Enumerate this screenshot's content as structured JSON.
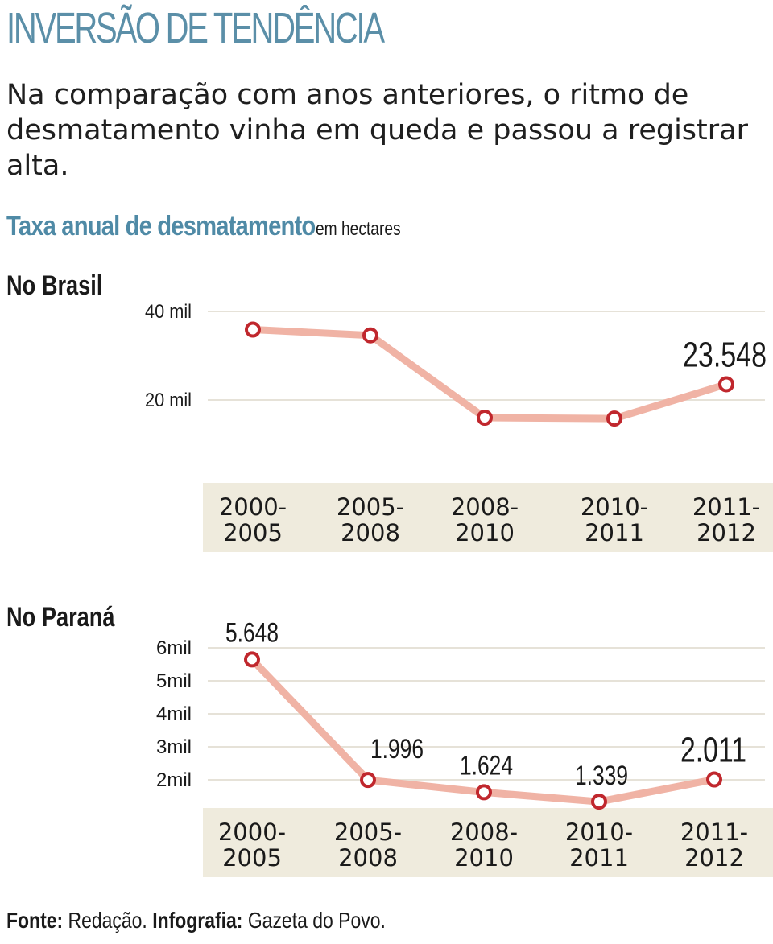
{
  "headline": "INVERSÃO DE TENDÊNCIA",
  "subtitle": "Na comparação com anos anteriores, o ritmo de desmatamento vinha em queda e passou a registrar alta.",
  "chart_title": "Taxa anual de desmatamento",
  "chart_unit": "em hectares",
  "source": {
    "fonte_label": "Fonte:",
    "fonte_value": "Redação.",
    "infografia_label": "Infografia:",
    "infografia_value": "Gazeta do Povo."
  },
  "colors": {
    "line": "#f0b3a5",
    "marker": "#c0272d",
    "grid": "#e6e2d8",
    "category_band": "#efebdd",
    "headline": "#5b8fa8",
    "chart_title": "#4f8aa6"
  },
  "chart_data": [
    {
      "type": "line",
      "panel_label": "No Brasil",
      "categories": [
        "2000-2005",
        "2005-2008",
        "2008-2010",
        "2010-2011",
        "2011-2012"
      ],
      "values": [
        35900,
        34600,
        16000,
        15800,
        23548
      ],
      "data_labels": [
        "",
        "",
        "",
        "",
        "23.548"
      ],
      "yticks": [
        {
          "value": 20000,
          "label": "20 mil"
        },
        {
          "value": 40000,
          "label": "40 mil"
        }
      ],
      "grid": true
    },
    {
      "type": "line",
      "panel_label": "No Paraná",
      "categories": [
        "2000-2005",
        "2005-2008",
        "2008-2010",
        "2010-2011",
        "2011-2012"
      ],
      "values": [
        5648,
        1996,
        1624,
        1339,
        2011
      ],
      "data_labels": [
        "5.648",
        "1.996",
        "1.624",
        "1.339",
        "2.011"
      ],
      "yticks": [
        {
          "value": 2000,
          "label": "2mil"
        },
        {
          "value": 3000,
          "label": "3mil"
        },
        {
          "value": 4000,
          "label": "4mil"
        },
        {
          "value": 5000,
          "label": "5mil"
        },
        {
          "value": 6000,
          "label": "6mil"
        }
      ],
      "grid": true
    }
  ]
}
